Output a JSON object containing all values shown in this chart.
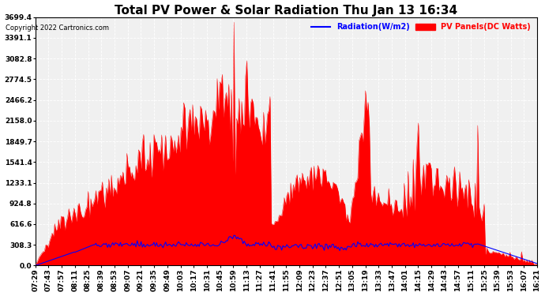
{
  "title": "Total PV Power & Solar Radiation Thu Jan 13 16:34",
  "copyright": "Copyright 2022 Cartronics.com",
  "legend_radiation": "Radiation(W/m2)",
  "legend_pv": "PV Panels(DC Watts)",
  "ylabel_values": [
    0.0,
    308.3,
    616.6,
    924.8,
    1233.1,
    1541.4,
    1849.7,
    2158.0,
    2466.2,
    2774.5,
    3082.8,
    3391.1,
    3699.4
  ],
  "ymax": 3699.4,
  "ymin": 0.0,
  "background_color": "#ffffff",
  "plot_bg_color": "#ffffff",
  "grid_color": "#aaaaaa",
  "fill_color": "#ff0000",
  "line_color_pv": "#ff0000",
  "line_color_rad": "#0000ff",
  "title_fontsize": 11,
  "tick_fontsize": 6.5,
  "copyright_fontsize": 6,
  "legend_fontsize": 7,
  "x_tick_labels": [
    "07:29",
    "07:43",
    "07:57",
    "08:11",
    "08:25",
    "08:39",
    "08:53",
    "09:07",
    "09:21",
    "09:35",
    "09:49",
    "10:03",
    "10:17",
    "10:31",
    "10:45",
    "10:59",
    "11:13",
    "11:27",
    "11:41",
    "11:55",
    "12:09",
    "12:23",
    "12:37",
    "12:51",
    "13:05",
    "13:19",
    "13:33",
    "13:47",
    "14:01",
    "14:15",
    "14:29",
    "14:43",
    "14:57",
    "15:11",
    "15:25",
    "15:39",
    "15:53",
    "16:07",
    "16:21"
  ],
  "n_points": 390
}
